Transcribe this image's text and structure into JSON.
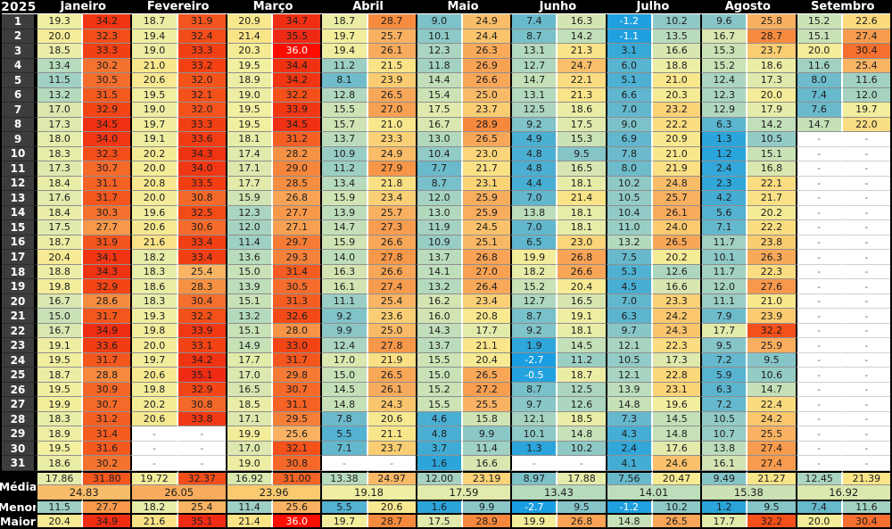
{
  "year": "2025",
  "labels": {
    "media": "Média",
    "menor": "Menor",
    "maior": "Maior"
  },
  "missing_placeholder": "-",
  "day_labels": [
    "1",
    "2",
    "3",
    "4",
    "5",
    "6",
    "7",
    "8",
    "9",
    "10",
    "11",
    "12",
    "13",
    "14",
    "15",
    "16",
    "17",
    "18",
    "19",
    "20",
    "21",
    "22",
    "23",
    "24",
    "25",
    "26",
    "27",
    "28",
    "29",
    "30",
    "31"
  ],
  "colors": {
    "header_bg": "#000000",
    "header_text": "#ffffff",
    "day_column_bg": "#3d3d3d",
    "day_column_text": "#ffffff",
    "missing_bg": "#ffffff",
    "missing_text": "#6b6b6b",
    "cell_text": "#1d1d1d",
    "cell_text_extreme": "#ffffff",
    "scale": [
      [
        -3,
        "#189de2"
      ],
      [
        2,
        "#2ea6da"
      ],
      [
        5,
        "#4db0d2"
      ],
      [
        8,
        "#6ebbcb"
      ],
      [
        10,
        "#8cc8c7"
      ],
      [
        12,
        "#a6d3c1"
      ],
      [
        14,
        "#bedebb"
      ],
      [
        16,
        "#d2e4b3"
      ],
      [
        18,
        "#e6ecaa"
      ],
      [
        19.5,
        "#f1efa0"
      ],
      [
        21,
        "#f9e78c"
      ],
      [
        22.5,
        "#fbda7e"
      ],
      [
        24,
        "#faca70"
      ],
      [
        25.5,
        "#f9b263"
      ],
      [
        27,
        "#f8a153"
      ],
      [
        28.5,
        "#f68e41"
      ],
      [
        30,
        "#f57733"
      ],
      [
        31.5,
        "#f45a20"
      ],
      [
        33,
        "#f34414"
      ],
      [
        34.5,
        "#f03012"
      ],
      [
        35.6,
        "#ee2814"
      ],
      [
        36,
        "#fb0d00"
      ]
    ]
  },
  "months": [
    {
      "name": "Janeiro",
      "days": [
        [
          "19.3",
          "34.2"
        ],
        [
          "20.0",
          "32.3"
        ],
        [
          "18.5",
          "33.3"
        ],
        [
          "13.4",
          "30.2"
        ],
        [
          "11.5",
          "30.5"
        ],
        [
          "13.2",
          "31.5"
        ],
        [
          "17.0",
          "32.9"
        ],
        [
          "17.3",
          "34.5"
        ],
        [
          "18.0",
          "34.0"
        ],
        [
          "18.3",
          "32.3"
        ],
        [
          "17.3",
          "30.7"
        ],
        [
          "18.4",
          "31.1"
        ],
        [
          "17.6",
          "31.7"
        ],
        [
          "18.4",
          "30.3"
        ],
        [
          "17.5",
          "27.7"
        ],
        [
          "18.7",
          "31.9"
        ],
        [
          "20.4",
          "34.1"
        ],
        [
          "18.8",
          "34.3"
        ],
        [
          "19.8",
          "32.9"
        ],
        [
          "16.7",
          "28.6"
        ],
        [
          "15.0",
          "31.7"
        ],
        [
          "16.7",
          "34.9"
        ],
        [
          "19.1",
          "33.6"
        ],
        [
          "19.5",
          "31.7"
        ],
        [
          "18.7",
          "28.8"
        ],
        [
          "19.5",
          "30.9"
        ],
        [
          "19.9",
          "30.7"
        ],
        [
          "18.3",
          "31.2"
        ],
        [
          "18.9",
          "31.4"
        ],
        [
          "19.5",
          "31.6"
        ],
        [
          "18.6",
          "30.2"
        ]
      ],
      "media": [
        "17.86",
        "31.80"
      ],
      "media_mes": "24.83",
      "menor": [
        "11.5",
        "27.7"
      ],
      "maior": [
        "20.4",
        "34.9"
      ]
    },
    {
      "name": "Fevereiro",
      "days": [
        [
          "18.7",
          "31.9"
        ],
        [
          "19.4",
          "32.4"
        ],
        [
          "19.0",
          "33.3"
        ],
        [
          "21.0",
          "33.2"
        ],
        [
          "20.6",
          "32.0"
        ],
        [
          "19.5",
          "32.1"
        ],
        [
          "19.0",
          "32.0"
        ],
        [
          "19.7",
          "33.3"
        ],
        [
          "19.1",
          "33.6"
        ],
        [
          "20.2",
          "34.3"
        ],
        [
          "20.0",
          "34.0"
        ],
        [
          "20.8",
          "33.5"
        ],
        [
          "20.0",
          "30.8"
        ],
        [
          "19.6",
          "32.5"
        ],
        [
          "20.6",
          "30.6"
        ],
        [
          "21.6",
          "33.4"
        ],
        [
          "18.2",
          "33.4"
        ],
        [
          "18.3",
          "25.4"
        ],
        [
          "18.6",
          "28.3"
        ],
        [
          "18.3",
          "30.4"
        ],
        [
          "19.3",
          "32.2"
        ],
        [
          "19.8",
          "33.9"
        ],
        [
          "20.0",
          "33.1"
        ],
        [
          "19.7",
          "34.2"
        ],
        [
          "20.6",
          "35.1"
        ],
        [
          "19.8",
          "32.9"
        ],
        [
          "20.2",
          "30.8"
        ],
        [
          "20.6",
          "33.8"
        ],
        [
          "-",
          "-"
        ],
        [
          "-",
          "-"
        ],
        [
          "-",
          "-"
        ]
      ],
      "media": [
        "19.72",
        "32.37"
      ],
      "media_mes": "26.05",
      "menor": [
        "18.2",
        "25.4"
      ],
      "maior": [
        "21.6",
        "35.1"
      ]
    },
    {
      "name": "Março",
      "days": [
        [
          "20.9",
          "34.7"
        ],
        [
          "21.4",
          "35.5"
        ],
        [
          "20.3",
          "36.0"
        ],
        [
          "19.5",
          "34.4"
        ],
        [
          "18.9",
          "34.2"
        ],
        [
          "19.0",
          "32.2"
        ],
        [
          "19.5",
          "33.9"
        ],
        [
          "19.5",
          "34.5"
        ],
        [
          "18.1",
          "31.2"
        ],
        [
          "17.4",
          "28.2"
        ],
        [
          "17.1",
          "29.0"
        ],
        [
          "17.7",
          "28.5"
        ],
        [
          "15.9",
          "26.8"
        ],
        [
          "12.3",
          "27.7"
        ],
        [
          "12.0",
          "27.1"
        ],
        [
          "11.4",
          "29.7"
        ],
        [
          "13.6",
          "29.3"
        ],
        [
          "15.0",
          "31.4"
        ],
        [
          "13.9",
          "30.5"
        ],
        [
          "15.1",
          "31.3"
        ],
        [
          "13.2",
          "32.6"
        ],
        [
          "15.1",
          "28.0"
        ],
        [
          "14.9",
          "33.0"
        ],
        [
          "17.7",
          "31.7"
        ],
        [
          "17.0",
          "29.8"
        ],
        [
          "16.5",
          "30.7"
        ],
        [
          "18.5",
          "31.1"
        ],
        [
          "17.1",
          "29.5"
        ],
        [
          "19.9",
          "25.6"
        ],
        [
          "17.0",
          "32.1"
        ],
        [
          "19.0",
          "30.8"
        ]
      ],
      "media": [
        "16.92",
        "31.00"
      ],
      "media_mes": "23.96",
      "menor": [
        "11.4",
        "25.6"
      ],
      "maior": [
        "21.4",
        "36.0"
      ]
    },
    {
      "name": "Abril",
      "days": [
        [
          "18.7",
          "28.7"
        ],
        [
          "19.7",
          "25.7"
        ],
        [
          "19.4",
          "26.1"
        ],
        [
          "11.2",
          "21.5"
        ],
        [
          "8.1",
          "23.9"
        ],
        [
          "12.8",
          "26.5"
        ],
        [
          "15.5",
          "27.0"
        ],
        [
          "15.7",
          "21.0"
        ],
        [
          "13.7",
          "23.3"
        ],
        [
          "10.9",
          "24.9"
        ],
        [
          "11.2",
          "27.9"
        ],
        [
          "13.4",
          "21.8"
        ],
        [
          "15.9",
          "23.4"
        ],
        [
          "13.9",
          "25.7"
        ],
        [
          "14.7",
          "27.3"
        ],
        [
          "15.9",
          "26.6"
        ],
        [
          "14.0",
          "27.8"
        ],
        [
          "16.3",
          "26.6"
        ],
        [
          "16.1",
          "27.4"
        ],
        [
          "11.1",
          "25.4"
        ],
        [
          "9.2",
          "23.6"
        ],
        [
          "9.9",
          "25.0"
        ],
        [
          "12.4",
          "27.8"
        ],
        [
          "17.0",
          "21.9"
        ],
        [
          "15.0",
          "26.5"
        ],
        [
          "14.5",
          "26.1"
        ],
        [
          "14.8",
          "24.3"
        ],
        [
          "7.8",
          "20.6"
        ],
        [
          "5.5",
          "21.1"
        ],
        [
          "7.1",
          "23.7"
        ],
        [
          "-",
          "-"
        ]
      ],
      "media": [
        "13.38",
        "24.97"
      ],
      "media_mes": "19.18",
      "menor": [
        "5.5",
        "20.6"
      ],
      "maior": [
        "19.7",
        "28.7"
      ]
    },
    {
      "name": "Maio",
      "days": [
        [
          "9.0",
          "24.9"
        ],
        [
          "10.1",
          "24.4"
        ],
        [
          "12.3",
          "26.3"
        ],
        [
          "11.8",
          "26.9"
        ],
        [
          "14.4",
          "26.6"
        ],
        [
          "15.4",
          "25.0"
        ],
        [
          "17.5",
          "23.7"
        ],
        [
          "16.7",
          "28.9"
        ],
        [
          "13.0",
          "26.5"
        ],
        [
          "10.4",
          "23.0"
        ],
        [
          "7.7",
          "21.7"
        ],
        [
          "8.7",
          "23.1"
        ],
        [
          "12.0",
          "25.9"
        ],
        [
          "13.0",
          "25.9"
        ],
        [
          "11.9",
          "24.5"
        ],
        [
          "10.9",
          "25.1"
        ],
        [
          "13.7",
          "26.8"
        ],
        [
          "14.1",
          "27.0"
        ],
        [
          "13.2",
          "26.4"
        ],
        [
          "16.2",
          "23.4"
        ],
        [
          "16.0",
          "20.8"
        ],
        [
          "14.3",
          "17.7"
        ],
        [
          "13.7",
          "21.1"
        ],
        [
          "15.5",
          "20.4"
        ],
        [
          "15.0",
          "26.5"
        ],
        [
          "15.2",
          "27.2"
        ],
        [
          "15.5",
          "25.5"
        ],
        [
          "4.6",
          "15.8"
        ],
        [
          "4.8",
          "9.9"
        ],
        [
          "3.7",
          "11.4"
        ],
        [
          "1.6",
          "16.6"
        ]
      ],
      "media": [
        "12.00",
        "23.19"
      ],
      "media_mes": "17.59",
      "menor": [
        "1.6",
        "9.9"
      ],
      "maior": [
        "17.5",
        "28.9"
      ]
    },
    {
      "name": "Junho",
      "days": [
        [
          "7.4",
          "16.3"
        ],
        [
          "8.7",
          "14.2"
        ],
        [
          "13.1",
          "21.3"
        ],
        [
          "12.7",
          "24.7"
        ],
        [
          "14.7",
          "22.1"
        ],
        [
          "13.1",
          "21.3"
        ],
        [
          "12.5",
          "18.6"
        ],
        [
          "9.2",
          "17.5"
        ],
        [
          "4.9",
          "15.3"
        ],
        [
          "4.8",
          "9.5"
        ],
        [
          "4.8",
          "16.5"
        ],
        [
          "4.4",
          "18.1"
        ],
        [
          "7.0",
          "21.4"
        ],
        [
          "13.8",
          "18.1"
        ],
        [
          "7.0",
          "18.1"
        ],
        [
          "6.5",
          "23.0"
        ],
        [
          "19.9",
          "26.8"
        ],
        [
          "18.2",
          "26.6"
        ],
        [
          "15.2",
          "20.4"
        ],
        [
          "12.7",
          "16.5"
        ],
        [
          "8.7",
          "19.1"
        ],
        [
          "9.2",
          "18.1"
        ],
        [
          "1.9",
          "14.5"
        ],
        [
          "-2.7",
          "11.2"
        ],
        [
          "-0.5",
          "18.7"
        ],
        [
          "8.7",
          "12.5"
        ],
        [
          "9.7",
          "12.6"
        ],
        [
          "12.1",
          "18.5"
        ],
        [
          "10.1",
          "14.8"
        ],
        [
          "1.3",
          "10.2"
        ],
        [
          "-",
          "-"
        ]
      ],
      "media": [
        "8.97",
        "17.88"
      ],
      "media_mes": "13.43",
      "menor": [
        "-2.7",
        "9.5"
      ],
      "maior": [
        "19.9",
        "26.8"
      ]
    },
    {
      "name": "Julho",
      "days": [
        [
          "-1.2",
          "10.2"
        ],
        [
          "-1.1",
          "13.5"
        ],
        [
          "3.1",
          "16.6"
        ],
        [
          "6.0",
          "18.8"
        ],
        [
          "5.1",
          "21.0"
        ],
        [
          "6.6",
          "20.3"
        ],
        [
          "7.0",
          "23.2"
        ],
        [
          "9.0",
          "22.2"
        ],
        [
          "6.9",
          "20.9"
        ],
        [
          "7.8",
          "21.0"
        ],
        [
          "8.0",
          "21.9"
        ],
        [
          "10.2",
          "24.8"
        ],
        [
          "10.5",
          "25.7"
        ],
        [
          "10.4",
          "26.1"
        ],
        [
          "11.0",
          "24.0"
        ],
        [
          "13.2",
          "26.5"
        ],
        [
          "7.5",
          "20.2"
        ],
        [
          "5.3",
          "12.6"
        ],
        [
          "4.5",
          "16.6"
        ],
        [
          "7.0",
          "23.3"
        ],
        [
          "6.3",
          "24.2"
        ],
        [
          "9.7",
          "24.3"
        ],
        [
          "12.1",
          "22.3"
        ],
        [
          "10.5",
          "17.3"
        ],
        [
          "12.1",
          "22.8"
        ],
        [
          "13.9",
          "23.1"
        ],
        [
          "14.8",
          "19.6"
        ],
        [
          "7.3",
          "14.5"
        ],
        [
          "4.3",
          "14.8"
        ],
        [
          "2.4",
          "17.6"
        ],
        [
          "4.1",
          "24.6"
        ]
      ],
      "media": [
        "7.56",
        "20.47"
      ],
      "media_mes": "14.01",
      "menor": [
        "-1.2",
        "10.2"
      ],
      "maior": [
        "14.8",
        "26.5"
      ]
    },
    {
      "name": "Agosto",
      "days": [
        [
          "9.6",
          "25.8"
        ],
        [
          "16.7",
          "28.7"
        ],
        [
          "15.3",
          "23.7"
        ],
        [
          "15.2",
          "18.6"
        ],
        [
          "12.4",
          "17.3"
        ],
        [
          "12.3",
          "20.0"
        ],
        [
          "12.9",
          "17.9"
        ],
        [
          "6.3",
          "14.2"
        ],
        [
          "1.3",
          "10.5"
        ],
        [
          "1.2",
          "15.1"
        ],
        [
          "2.4",
          "16.8"
        ],
        [
          "2.3",
          "22.1"
        ],
        [
          "4.2",
          "21.7"
        ],
        [
          "5.6",
          "20.2"
        ],
        [
          "7.1",
          "22.2"
        ],
        [
          "11.7",
          "23.8"
        ],
        [
          "10.1",
          "26.3"
        ],
        [
          "11.7",
          "22.3"
        ],
        [
          "12.0",
          "27.6"
        ],
        [
          "11.1",
          "21.0"
        ],
        [
          "7.9",
          "23.9"
        ],
        [
          "17.7",
          "32.2"
        ],
        [
          "9.5",
          "25.9"
        ],
        [
          "7.2",
          "9.5"
        ],
        [
          "5.9",
          "10.6"
        ],
        [
          "6.3",
          "14.7"
        ],
        [
          "7.2",
          "22.4"
        ],
        [
          "10.5",
          "24.2"
        ],
        [
          "10.7",
          "25.5"
        ],
        [
          "13.8",
          "27.4"
        ],
        [
          "16.1",
          "27.4"
        ]
      ],
      "media": [
        "9.49",
        "21.27"
      ],
      "media_mes": "15.38",
      "menor": [
        "1.2",
        "9.5"
      ],
      "maior": [
        "17.7",
        "32.2"
      ]
    },
    {
      "name": "Setembro",
      "days": [
        [
          "15.2",
          "22.6"
        ],
        [
          "15.1",
          "27.4"
        ],
        [
          "20.0",
          "30.4"
        ],
        [
          "11.6",
          "25.4"
        ],
        [
          "8.0",
          "11.6"
        ],
        [
          "7.4",
          "12.0"
        ],
        [
          "7.6",
          "19.7"
        ],
        [
          "14.7",
          "22.0"
        ],
        [
          "-",
          "-"
        ],
        [
          "-",
          "-"
        ],
        [
          "-",
          "-"
        ],
        [
          "-",
          "-"
        ],
        [
          "-",
          "-"
        ],
        [
          "-",
          "-"
        ],
        [
          "-",
          "-"
        ],
        [
          "-",
          "-"
        ],
        [
          "-",
          "-"
        ],
        [
          "-",
          "-"
        ],
        [
          "-",
          "-"
        ],
        [
          "-",
          "-"
        ],
        [
          "-",
          "-"
        ],
        [
          "-",
          "-"
        ],
        [
          "-",
          "-"
        ],
        [
          "-",
          "-"
        ],
        [
          "-",
          "-"
        ],
        [
          "-",
          "-"
        ],
        [
          "-",
          "-"
        ],
        [
          "-",
          "-"
        ],
        [
          "-",
          "-"
        ],
        [
          "-",
          "-"
        ],
        [
          "-",
          "-"
        ]
      ],
      "media": [
        "12.45",
        "21.39"
      ],
      "media_mes": "16.92",
      "menor": [
        "7.4",
        "11.6"
      ],
      "maior": [
        "20.0",
        "30.4"
      ]
    }
  ]
}
